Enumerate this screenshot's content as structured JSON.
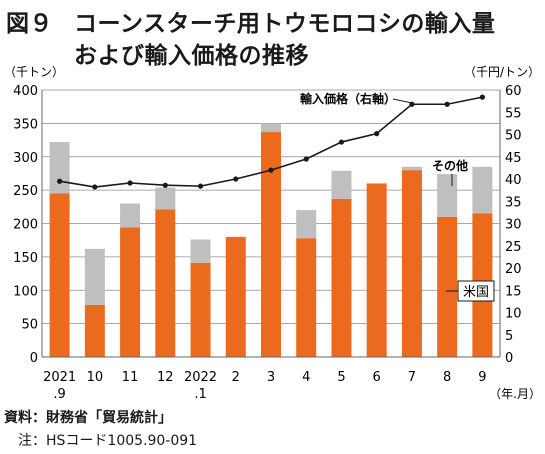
{
  "title": {
    "figure_label": "図９",
    "line1": "コーンスターチ用トウモロコシの輸入量",
    "line2": "および輸入価格の推移"
  },
  "footer": {
    "source": "資料：財務省「貿易統計」",
    "note": "注：HSコード1005.90-091"
  },
  "colors": {
    "us": "#ec6a1e",
    "other": "#bfbfbf",
    "price_line": "#1a1a1a"
  },
  "chart_data": {
    "type": "bar",
    "stacked": true,
    "ylabel_left": "（千トン）",
    "ylabel_right": "（千円/トン）",
    "xlabel": "（年.月）",
    "ylim_left": [
      0,
      400
    ],
    "ylim_right": [
      0,
      60
    ],
    "yticks_left": [
      0,
      50,
      100,
      150,
      200,
      250,
      300,
      350,
      400
    ],
    "yticks_right": [
      0,
      5,
      10,
      15,
      20,
      25,
      30,
      35,
      40,
      45,
      50,
      55,
      60
    ],
    "grid": true,
    "categories": [
      [
        "2021",
        ".9"
      ],
      [
        "10",
        ""
      ],
      [
        "11",
        ""
      ],
      [
        "12",
        ""
      ],
      [
        "2022",
        ".1"
      ],
      [
        "2",
        ""
      ],
      [
        "3",
        ""
      ],
      [
        "4",
        ""
      ],
      [
        "5",
        ""
      ],
      [
        "6",
        ""
      ],
      [
        "7",
        ""
      ],
      [
        "8",
        ""
      ],
      [
        "9",
        ""
      ]
    ],
    "series": [
      {
        "name": "米国",
        "axis": "left",
        "values": [
          245,
          78,
          194,
          221,
          141,
          180,
          337,
          178,
          237,
          260,
          280,
          210,
          215
        ]
      },
      {
        "name": "その他",
        "axis": "left",
        "values": [
          77,
          84,
          36,
          33,
          35,
          0,
          13,
          42,
          42,
          0,
          5,
          64,
          70
        ]
      },
      {
        "name": "輸入価格（右軸）",
        "type": "line",
        "axis": "right",
        "values": [
          39.5,
          38.2,
          39.1,
          38.6,
          38.4,
          40.0,
          42.0,
          44.5,
          48.3,
          50.2,
          56.8,
          56.8,
          58.4
        ]
      }
    ]
  }
}
